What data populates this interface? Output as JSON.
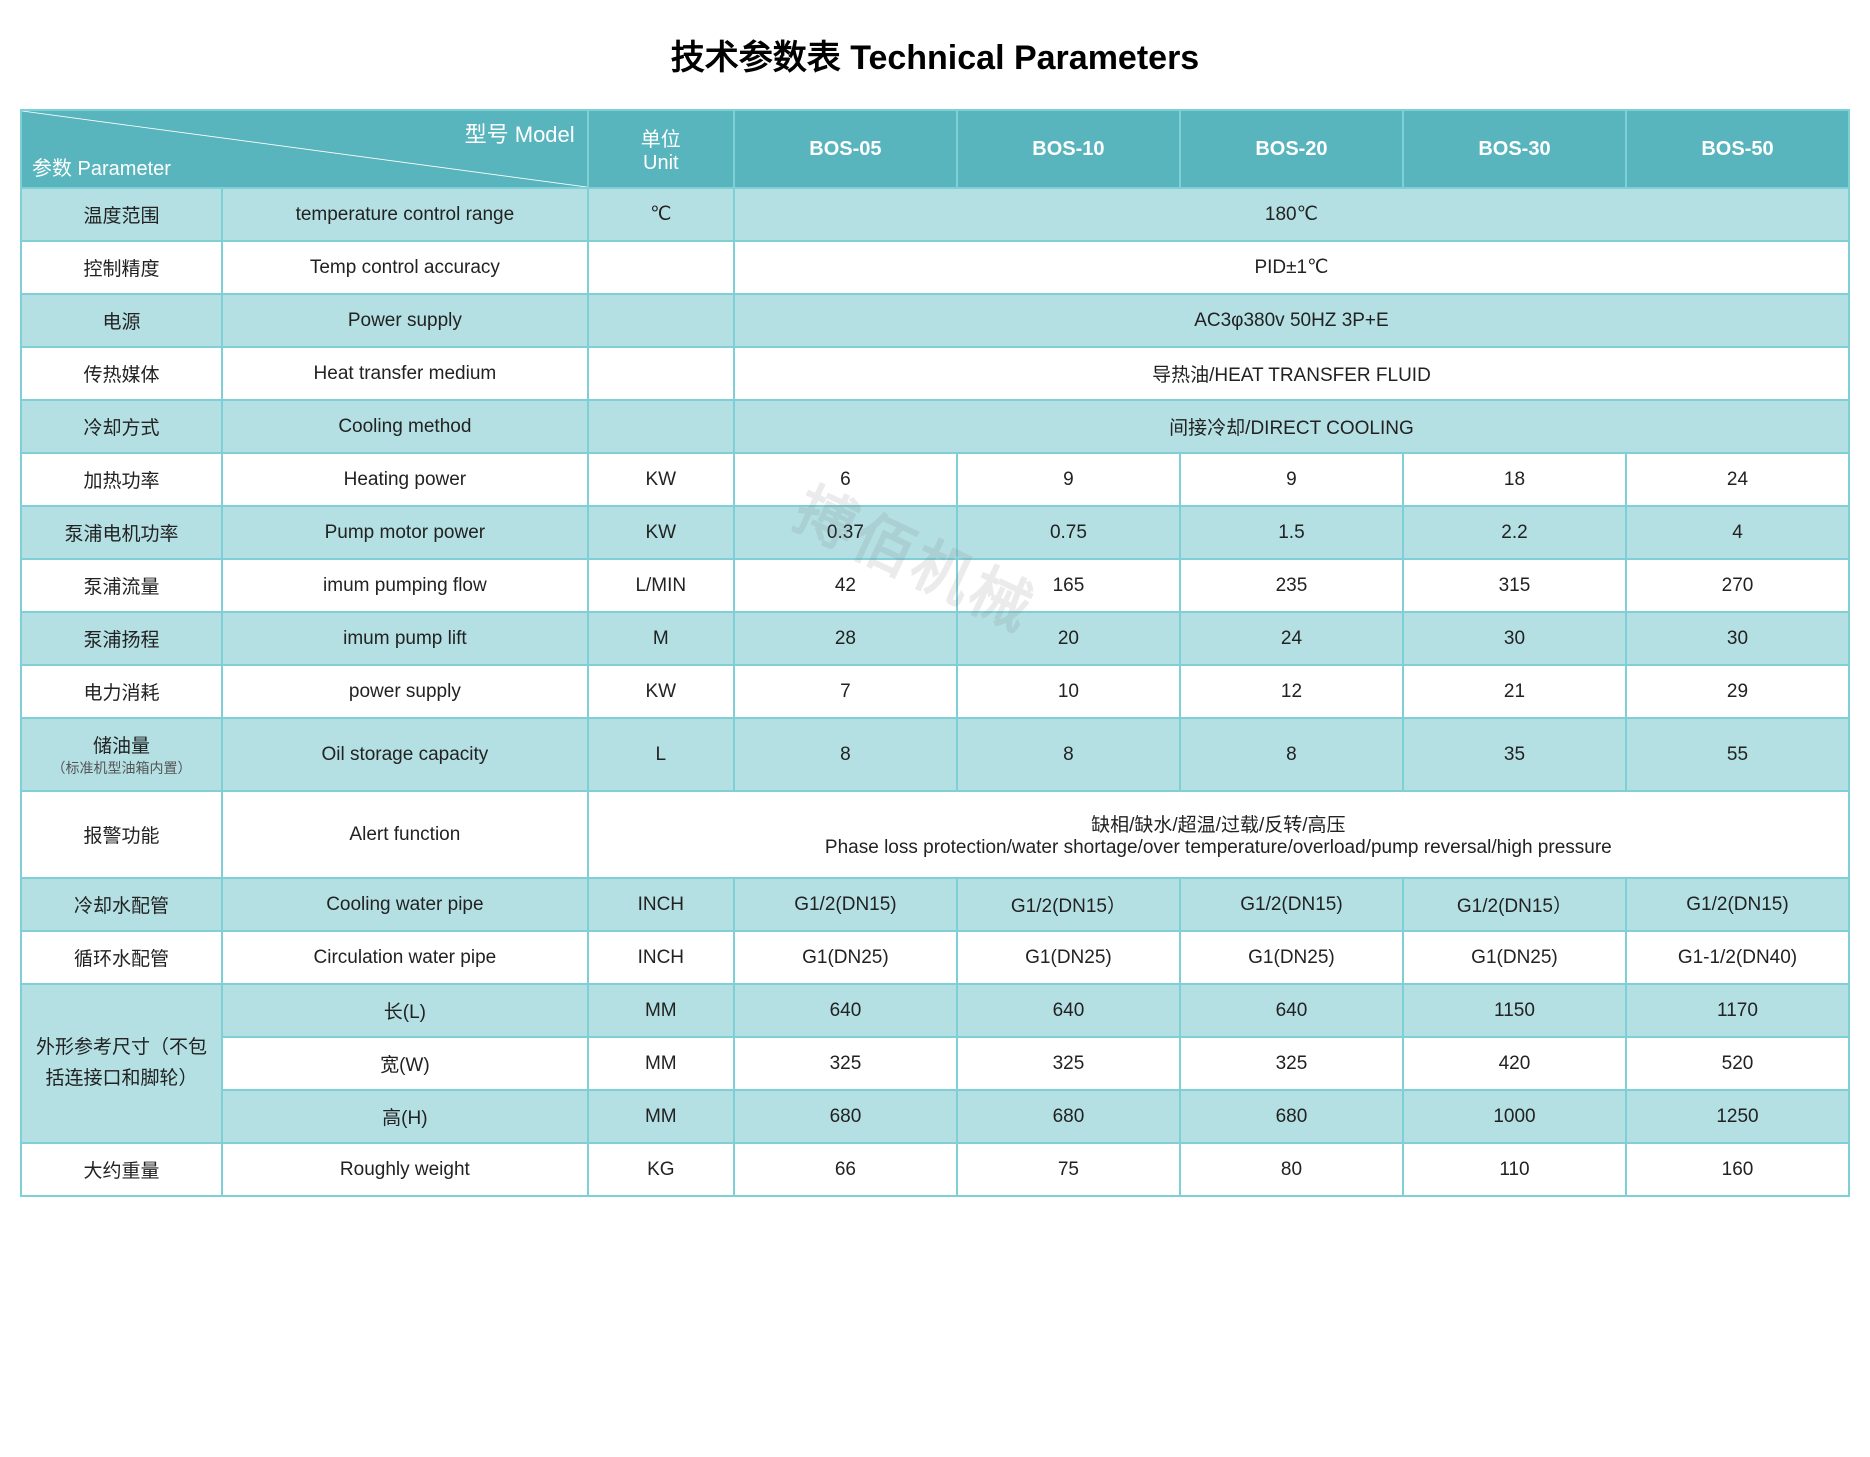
{
  "title": "技术参数表 Technical Parameters",
  "watermark": "搏佰机械",
  "header": {
    "model_label": "型号 Model",
    "param_label": "参数 Parameter",
    "unit_label_cn": "单位",
    "unit_label_en": "Unit",
    "models": [
      "BOS-05",
      "BOS-10",
      "BOS-20",
      "BOS-30",
      "BOS-50"
    ]
  },
  "colors": {
    "header_bg": "#58b5bd",
    "shade_bg": "#b4e0e4",
    "border": "#7fcfd6",
    "text": "#222222",
    "header_text": "#ffffff"
  },
  "rows": [
    {
      "cn": "温度范围",
      "en": "temperature control range",
      "unit": "℃",
      "span": "180℃",
      "shade": true
    },
    {
      "cn": "控制精度",
      "en": "Temp control accuracy",
      "unit": "",
      "span": "PID±1℃",
      "shade": false
    },
    {
      "cn": "电源",
      "en": "Power supply",
      "unit": "",
      "span": "AC3φ380v 50HZ 3P+E",
      "shade": true
    },
    {
      "cn": "传热媒体",
      "en": "Heat transfer medium",
      "unit": "",
      "span": "导热油/HEAT TRANSFER FLUID",
      "shade": false
    },
    {
      "cn": "冷却方式",
      "en": "Cooling method",
      "unit": "",
      "span": "间接冷却/DIRECT COOLING",
      "shade": true
    },
    {
      "cn": "加热功率",
      "en": "Heating power",
      "unit": "KW",
      "vals": [
        "6",
        "9",
        "9",
        "18",
        "24"
      ],
      "shade": false
    },
    {
      "cn": "泵浦电机功率",
      "en": "Pump motor power",
      "unit": "KW",
      "vals": [
        "0.37",
        "0.75",
        "1.5",
        "2.2",
        "4"
      ],
      "shade": true
    },
    {
      "cn": "泵浦流量",
      "en": "imum pumping flow",
      "unit": "L/MIN",
      "vals": [
        "42",
        "165",
        "235",
        "315",
        "270"
      ],
      "shade": false
    },
    {
      "cn": "泵浦扬程",
      "en": "imum pump lift",
      "unit": "M",
      "vals": [
        "28",
        "20",
        "24",
        "30",
        "30"
      ],
      "shade": true
    },
    {
      "cn": "电力消耗",
      "en": "power supply",
      "unit": "KW",
      "vals": [
        "7",
        "10",
        "12",
        "21",
        "29"
      ],
      "shade": false
    },
    {
      "cn": "储油量",
      "cn_sub": "（标准机型油箱内置）",
      "en": "Oil storage capacity",
      "unit": "L",
      "vals": [
        "8",
        "8",
        "8",
        "35",
        "55"
      ],
      "shade": true
    },
    {
      "cn": "报警功能",
      "en": "Alert function",
      "unit": "",
      "span_multi": [
        "缺相/缺水/超温/过载/反转/高压",
        "Phase loss protection/water shortage/over temperature/overload/pump reversal/high pressure"
      ],
      "span_includes_unit": true,
      "shade": false,
      "tall": true
    },
    {
      "cn": "冷却水配管",
      "en": "Cooling water pipe",
      "unit": "INCH",
      "vals": [
        "G1/2(DN15)",
        "G1/2(DN15）",
        "G1/2(DN15)",
        "G1/2(DN15）",
        "G1/2(DN15)"
      ],
      "shade": true
    },
    {
      "cn": "循环水配管",
      "en": "Circulation water pipe",
      "unit": "INCH",
      "vals": [
        "G1(DN25)",
        "G1(DN25)",
        "G1(DN25)",
        "G1(DN25)",
        "G1-1/2(DN40)"
      ],
      "shade": false
    }
  ],
  "dim_group": {
    "label": "外形参考尺寸（不包括连接口和脚轮）",
    "rows": [
      {
        "en": "长(L)",
        "unit": "MM",
        "vals": [
          "640",
          "640",
          "640",
          "1150",
          "1170"
        ],
        "shade": true
      },
      {
        "en": "宽(W)",
        "unit": "MM",
        "vals": [
          "325",
          "325",
          "325",
          "420",
          "520"
        ],
        "shade": false
      },
      {
        "en": "高(H)",
        "unit": "MM",
        "vals": [
          "680",
          "680",
          "680",
          "1000",
          "1250"
        ],
        "shade": true
      }
    ]
  },
  "weight_row": {
    "cn": "大约重量",
    "en": "Roughly weight",
    "unit": "KG",
    "vals": [
      "66",
      "75",
      "80",
      "110",
      "160"
    ],
    "shade": false
  }
}
